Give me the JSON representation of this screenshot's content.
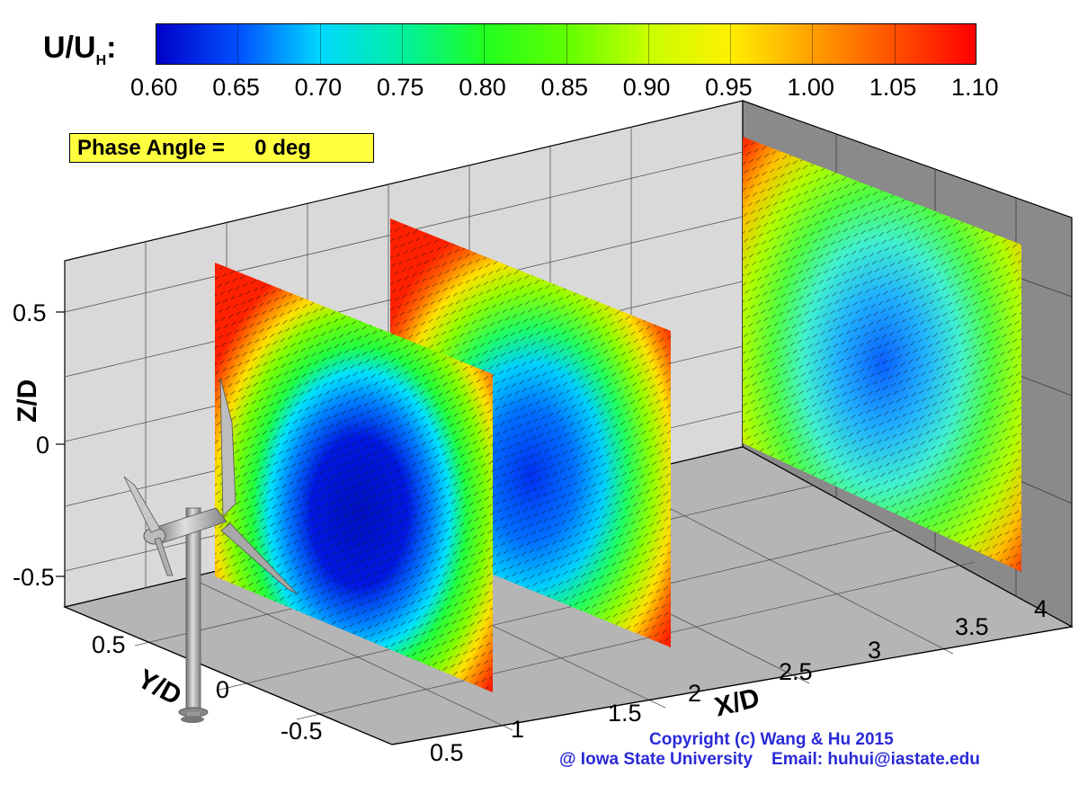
{
  "colorbar": {
    "title": "U/U",
    "title_sub": "H",
    "title_suffix": ":",
    "ticks": [
      "0.60",
      "0.65",
      "0.70",
      "0.75",
      "0.80",
      "0.85",
      "0.90",
      "0.95",
      "1.00",
      "1.05",
      "1.10"
    ],
    "colors": [
      "#0000c8",
      "#0050ff",
      "#00d8ff",
      "#00f0a0",
      "#20ff20",
      "#60ff00",
      "#c8ff00",
      "#fff000",
      "#ffa000",
      "#ff5000",
      "#ff0000"
    ]
  },
  "phase_label": "Phase Angle =     0 deg",
  "axes": {
    "z": {
      "label": "Z/D",
      "ticks": [
        "0.5",
        "0",
        "-0.5"
      ]
    },
    "y": {
      "label": "Y/D",
      "ticks": [
        "0.5",
        "0",
        "-0.5"
      ]
    },
    "x": {
      "label": "X/D",
      "ticks": [
        "0.5",
        "1",
        "1.5",
        "2",
        "2.5",
        "3",
        "3.5",
        "4"
      ]
    }
  },
  "copyright": {
    "line1": "Copyright (c) Wang & Hu 2015",
    "line2": "@ Iowa State University    Email: huhui@iastate.edu"
  }
}
